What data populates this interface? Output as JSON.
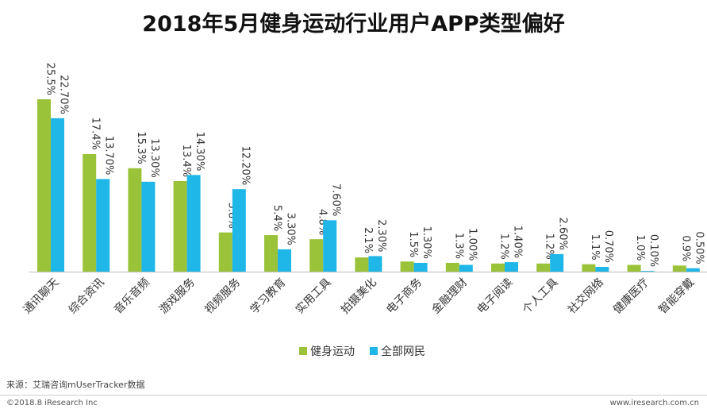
{
  "title": "2018年5月健身运动行业用户APP类型偏好",
  "source": "来源：艾瑞咨询mUserTracker数据",
  "copyright": "©2018.8 iResearch Inc",
  "website": "www.iresearch.com.cn",
  "colors": {
    "series1": "#9bc33a",
    "series2": "#1fb7e8",
    "axis": "#bfbfbf",
    "text": "#333333"
  },
  "chart_data": {
    "type": "bar",
    "title": "2018年5月健身运动行业用户APP类型偏好",
    "xlabel": "",
    "ylabel": "",
    "ylim": [
      0,
      26
    ],
    "grid": false,
    "legend_position": "bottom",
    "categories": [
      "通讯聊天",
      "综合资讯",
      "音乐音频",
      "游戏服务",
      "视频服务",
      "学习教育",
      "实用工具",
      "拍摄美化",
      "电子商务",
      "金融理财",
      "电子阅读",
      "个人工具",
      "社交网络",
      "健康医疗",
      "智能穿戴"
    ],
    "series": [
      {
        "name": "健身运动",
        "values": [
          25.5,
          17.4,
          15.3,
          13.4,
          5.8,
          5.4,
          4.8,
          2.1,
          1.5,
          1.3,
          1.2,
          1.2,
          1.1,
          1.0,
          0.9
        ],
        "labels": [
          "25.5%",
          "17.4%",
          "15.3%",
          "13.4%",
          "5.8%",
          "5.4%",
          "4.8%",
          "2.1%",
          "1.5%",
          "1.3%",
          "1.2%",
          "1.2%",
          "1.1%",
          "1.0%",
          "0.9%"
        ]
      },
      {
        "name": "全部网民",
        "values": [
          22.7,
          13.7,
          13.3,
          14.3,
          12.2,
          3.3,
          7.6,
          2.3,
          1.3,
          1.0,
          1.4,
          2.6,
          0.7,
          0.1,
          0.5
        ],
        "labels": [
          "22.70%",
          "13.70%",
          "13.30%",
          "14.30%",
          "12.20%",
          "3.30%",
          "7.60%",
          "2.30%",
          "1.30%",
          "1.00%",
          "1.40%",
          "2.60%",
          "0.70%",
          "0.10%",
          "0.50%"
        ]
      }
    ]
  }
}
